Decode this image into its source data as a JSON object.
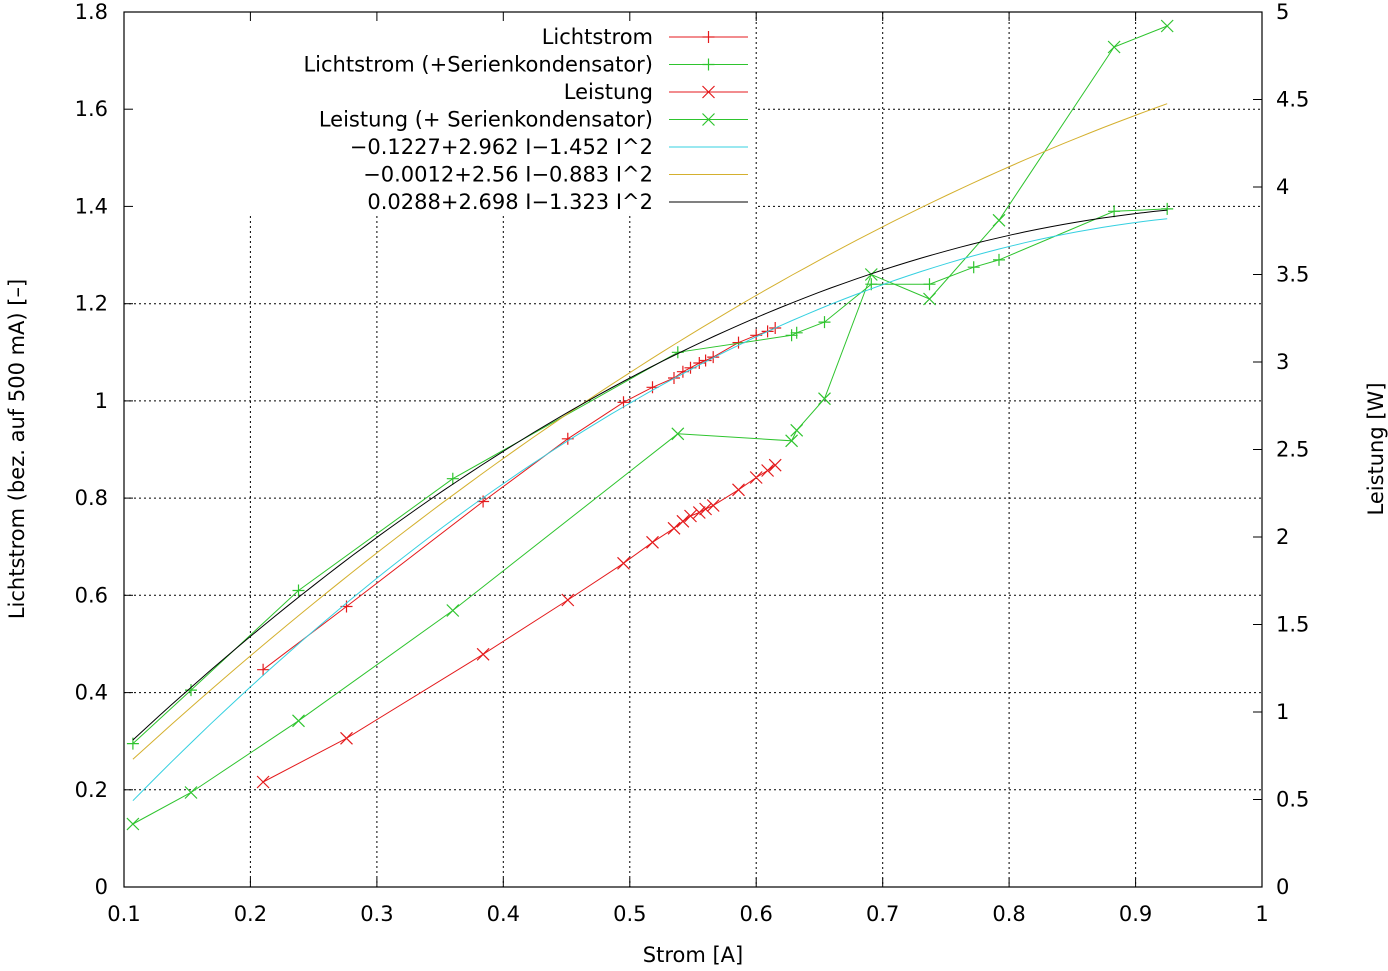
{
  "chart_data": {
    "type": "line",
    "xlabel": "Strom [A]",
    "ylabel": "Lichtstrom (bez. auf 500 mA) [–]",
    "y2label": "Leistung [W]",
    "xlim": [
      0.1,
      1
    ],
    "ylim": [
      0,
      1.8
    ],
    "y2lim": [
      0,
      5
    ],
    "grid": true,
    "legend_position": "top-left",
    "x_ticks": [
      "0.1",
      "0.2",
      "0.3",
      "0.4",
      "0.5",
      "0.6",
      "0.7",
      "0.8",
      "0.9",
      "1"
    ],
    "y_ticks": [
      "0",
      "0.2",
      "0.4",
      "0.6",
      "0.8",
      "1",
      "1.2",
      "1.4",
      "1.6",
      "1.8"
    ],
    "y2_ticks": [
      "0",
      "0.5",
      "1",
      "1.5",
      "2",
      "2.5",
      "3",
      "3.5",
      "4",
      "4.5",
      "5"
    ],
    "series": [
      {
        "name": "Lichtstrom",
        "axis": "y1",
        "color": "#e41a1c",
        "marker": "plus",
        "points": [
          [
            0.21,
            0.447
          ],
          [
            0.276,
            0.577
          ],
          [
            0.384,
            0.793
          ],
          [
            0.451,
            0.922
          ],
          [
            0.495,
            0.997
          ],
          [
            0.518,
            1.028
          ],
          [
            0.535,
            1.047
          ],
          [
            0.542,
            1.06
          ],
          [
            0.548,
            1.068
          ],
          [
            0.555,
            1.078
          ],
          [
            0.56,
            1.083
          ],
          [
            0.566,
            1.09
          ],
          [
            0.586,
            1.12
          ],
          [
            0.6,
            1.135
          ],
          [
            0.609,
            1.143
          ],
          [
            0.615,
            1.15
          ]
        ]
      },
      {
        "name": "Lichtstrom (+Serienkondensator)",
        "axis": "y1",
        "color": "#2ec42e",
        "marker": "plus",
        "points": [
          [
            0.107,
            0.295
          ],
          [
            0.153,
            0.405
          ],
          [
            0.238,
            0.61
          ],
          [
            0.36,
            0.84
          ],
          [
            0.538,
            1.1
          ],
          [
            0.628,
            1.135
          ],
          [
            0.632,
            1.14
          ],
          [
            0.654,
            1.162
          ],
          [
            0.691,
            1.24
          ],
          [
            0.737,
            1.24
          ],
          [
            0.772,
            1.275
          ],
          [
            0.792,
            1.29
          ],
          [
            0.883,
            1.39
          ],
          [
            0.925,
            1.395
          ]
        ]
      },
      {
        "name": "Leistung",
        "axis": "y2",
        "color": "#e41a1c",
        "marker": "cross",
        "points": [
          [
            0.21,
            0.6
          ],
          [
            0.276,
            0.85
          ],
          [
            0.384,
            1.33
          ],
          [
            0.451,
            1.64
          ],
          [
            0.495,
            1.85
          ],
          [
            0.518,
            1.97
          ],
          [
            0.535,
            2.05
          ],
          [
            0.542,
            2.09
          ],
          [
            0.548,
            2.12
          ],
          [
            0.555,
            2.14
          ],
          [
            0.56,
            2.16
          ],
          [
            0.566,
            2.18
          ],
          [
            0.586,
            2.27
          ],
          [
            0.6,
            2.34
          ],
          [
            0.609,
            2.38
          ],
          [
            0.615,
            2.41
          ]
        ]
      },
      {
        "name": "Leistung (+ Serienkondensator)",
        "axis": "y2",
        "color": "#2ec42e",
        "marker": "cross",
        "points": [
          [
            0.107,
            0.36
          ],
          [
            0.153,
            0.54
          ],
          [
            0.238,
            0.95
          ],
          [
            0.36,
            1.58
          ],
          [
            0.538,
            2.59
          ],
          [
            0.628,
            2.55
          ],
          [
            0.632,
            2.61
          ],
          [
            0.654,
            2.79
          ],
          [
            0.691,
            3.5
          ],
          [
            0.737,
            3.36
          ],
          [
            0.792,
            3.81
          ],
          [
            0.883,
            4.8
          ],
          [
            0.925,
            4.92
          ]
        ]
      },
      {
        "name": "−0.1227+2.962 I−1.452 I^2",
        "axis": "y1",
        "color": "#35d0e0",
        "marker": "none",
        "fit": {
          "a": -0.1227,
          "b": 2.962,
          "c": -1.452,
          "x_range": [
            0.107,
            0.925
          ]
        }
      },
      {
        "name": "−0.0012+2.56 I−0.883 I^2",
        "axis": "y1",
        "color": "#d4b02e",
        "marker": "none",
        "fit": {
          "a": -0.0012,
          "b": 2.56,
          "c": -0.883,
          "x_range": [
            0.107,
            0.925
          ]
        }
      },
      {
        "name": "0.0288+2.698 I−1.323 I^2",
        "axis": "y1",
        "color": "#000000",
        "marker": "none",
        "fit": {
          "a": 0.0288,
          "b": 2.698,
          "c": -1.323,
          "x_range": [
            0.107,
            0.925
          ]
        }
      }
    ]
  }
}
